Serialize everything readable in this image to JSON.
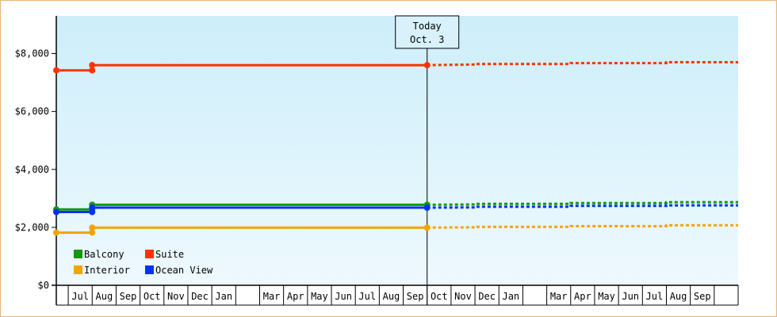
{
  "chart_data": {
    "type": "line",
    "title": "",
    "xlabel": "",
    "ylabel": "",
    "ylim": [
      0,
      9300
    ],
    "y_ticks": [
      {
        "value": 0,
        "label": "$0"
      },
      {
        "value": 2000,
        "label": "$2,000"
      },
      {
        "value": 4000,
        "label": "$4,000"
      },
      {
        "value": 6000,
        "label": "$6,000"
      },
      {
        "value": 8000,
        "label": "$8,000"
      }
    ],
    "x_range": [
      0,
      28.5
    ],
    "x_months": [
      {
        "label": "",
        "start": 0
      },
      {
        "label": "Jul",
        "start": 0.5
      },
      {
        "label": "Aug",
        "start": 1.5
      },
      {
        "label": "Sep",
        "start": 2.5
      },
      {
        "label": "Oct",
        "start": 3.5
      },
      {
        "label": "Nov",
        "start": 4.5
      },
      {
        "label": "Dec",
        "start": 5.5
      },
      {
        "label": "Jan",
        "start": 6.5
      },
      {
        "label": "",
        "start": 7.5
      },
      {
        "label": "Mar",
        "start": 8.5
      },
      {
        "label": "Apr",
        "start": 9.5
      },
      {
        "label": "May",
        "start": 10.5
      },
      {
        "label": "Jun",
        "start": 11.5
      },
      {
        "label": "Jul",
        "start": 12.5
      },
      {
        "label": "Aug",
        "start": 13.5
      },
      {
        "label": "Sep",
        "start": 14.5
      },
      {
        "label": "Oct",
        "start": 15.5
      },
      {
        "label": "Nov",
        "start": 16.5
      },
      {
        "label": "Dec",
        "start": 17.5
      },
      {
        "label": "Jan",
        "start": 18.5
      },
      {
        "label": "",
        "start": 19.5
      },
      {
        "label": "Mar",
        "start": 20.5
      },
      {
        "label": "Apr",
        "start": 21.5
      },
      {
        "label": "May",
        "start": 22.5
      },
      {
        "label": "Jun",
        "start": 23.5
      },
      {
        "label": "Jul",
        "start": 24.5
      },
      {
        "label": "Aug",
        "start": 25.5
      },
      {
        "label": "Sep",
        "start": 26.5
      },
      {
        "label": "",
        "start": 27.5
      }
    ],
    "today": {
      "x": 15.5,
      "line1": "Today",
      "line2": "Oct. 3"
    },
    "series": [
      {
        "name": "Suite",
        "color": "#ff3300",
        "history": [
          [
            0,
            7420
          ],
          [
            1.5,
            7420
          ],
          [
            1.5,
            7600
          ],
          [
            15.5,
            7600
          ]
        ],
        "markers": [
          [
            0,
            7420
          ],
          [
            1.5,
            7420
          ],
          [
            1.5,
            7600
          ],
          [
            15.5,
            7600
          ]
        ],
        "forecast": [
          [
            15.5,
            7600
          ],
          [
            17.5,
            7620
          ],
          [
            17.5,
            7640
          ],
          [
            21.5,
            7640
          ],
          [
            21.5,
            7670
          ],
          [
            25.5,
            7670
          ],
          [
            25.5,
            7700
          ],
          [
            28.5,
            7700
          ]
        ]
      },
      {
        "name": "Balcony",
        "color": "#119911",
        "history": [
          [
            0,
            2620
          ],
          [
            1.5,
            2620
          ],
          [
            1.5,
            2780
          ],
          [
            15.5,
            2780
          ]
        ],
        "markers": [
          [
            0,
            2620
          ],
          [
            1.5,
            2620
          ],
          [
            1.5,
            2780
          ],
          [
            15.5,
            2780
          ]
        ],
        "forecast": [
          [
            15.5,
            2780
          ],
          [
            17.5,
            2790
          ],
          [
            17.5,
            2810
          ],
          [
            21.5,
            2810
          ],
          [
            21.5,
            2840
          ],
          [
            25.5,
            2840
          ],
          [
            25.5,
            2870
          ],
          [
            28.5,
            2870
          ]
        ]
      },
      {
        "name": "Ocean View",
        "color": "#0033ee",
        "history": [
          [
            0,
            2530
          ],
          [
            1.5,
            2530
          ],
          [
            1.5,
            2680
          ],
          [
            15.5,
            2680
          ]
        ],
        "markers": [
          [
            0,
            2530
          ],
          [
            1.5,
            2530
          ],
          [
            1.5,
            2680
          ],
          [
            15.5,
            2680
          ]
        ],
        "forecast": [
          [
            15.5,
            2680
          ],
          [
            17.5,
            2690
          ],
          [
            17.5,
            2710
          ],
          [
            21.5,
            2710
          ],
          [
            21.5,
            2740
          ],
          [
            25.5,
            2740
          ],
          [
            25.5,
            2760
          ],
          [
            28.5,
            2760
          ]
        ]
      },
      {
        "name": "Interior",
        "color": "#f5a300",
        "history": [
          [
            0,
            1820
          ],
          [
            1.5,
            1820
          ],
          [
            1.5,
            1990
          ],
          [
            15.5,
            1990
          ]
        ],
        "markers": [
          [
            0,
            1820
          ],
          [
            1.5,
            1820
          ],
          [
            1.5,
            1990
          ],
          [
            15.5,
            1990
          ]
        ],
        "forecast": [
          [
            15.5,
            1990
          ],
          [
            17.5,
            2000
          ],
          [
            17.5,
            2020
          ],
          [
            21.5,
            2020
          ],
          [
            21.5,
            2040
          ],
          [
            25.5,
            2040
          ],
          [
            25.5,
            2070
          ],
          [
            28.5,
            2070
          ]
        ]
      }
    ],
    "legend": {
      "placement": "bottom-left",
      "rows": [
        [
          {
            "name": "Balcony",
            "color": "#119911"
          },
          {
            "name": "Suite",
            "color": "#ff3300"
          }
        ],
        [
          {
            "name": "Interior",
            "color": "#f5a300"
          },
          {
            "name": "Ocean View",
            "color": "#0033ee"
          }
        ]
      ]
    },
    "background_gradient": [
      "#cdeefa",
      "#eef9fe"
    ],
    "frame_border_color": "#e8b47c"
  }
}
